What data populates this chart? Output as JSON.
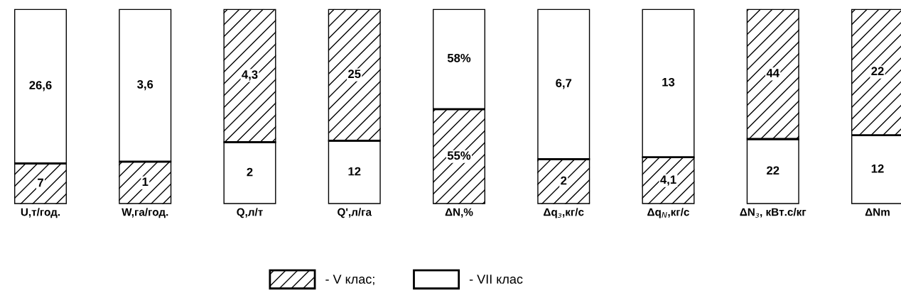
{
  "chart_data": [
    {
      "type": "bar",
      "stacked": true,
      "tick_labels": "x",
      "legend": "bottom",
      "categories": [
        "U,т/год."
      ],
      "series": [
        {
          "name": "- V клас;",
          "color": "#000000",
          "values": [
            7
          ],
          "value_labels": [
            "7"
          ]
        },
        {
          "name": "- VII клас",
          "color": "#ffffff",
          "values": [
            26.6
          ],
          "value_labels": [
            "26,6"
          ]
        }
      ]
    },
    {
      "type": "bar",
      "stacked": true,
      "tick_labels": "x",
      "categories": [
        "W,га/год."
      ],
      "series": [
        {
          "name": "- V клас;",
          "color": "#000000",
          "values": [
            1
          ],
          "value_labels": [
            "1"
          ]
        },
        {
          "name": "- VII клас",
          "color": "#ffffff",
          "values": [
            3.6
          ],
          "value_labels": [
            "3,6"
          ]
        }
      ]
    },
    {
      "type": "bar",
      "stacked": true,
      "tick_labels": "x",
      "categories": [
        "Q,л/т"
      ],
      "series": [
        {
          "name": "- VII клас",
          "color": "#ffffff",
          "values": [
            2
          ],
          "value_labels": [
            "2"
          ]
        },
        {
          "name": "- V клас;",
          "color": "#000000",
          "values": [
            4.3
          ],
          "value_labels": [
            "4,3"
          ]
        }
      ]
    },
    {
      "type": "bar",
      "stacked": true,
      "tick_labels": "x",
      "categories": [
        "Q',л/га"
      ],
      "series": [
        {
          "name": "- VII клас",
          "color": "#ffffff",
          "values": [
            12
          ],
          "value_labels": [
            "12"
          ]
        },
        {
          "name": "- V клас;",
          "color": "#000000",
          "values": [
            25
          ],
          "value_labels": [
            "25"
          ]
        }
      ]
    },
    {
      "type": "bar",
      "stacked": true,
      "tick_labels": "x",
      "categories": [
        "ΔN,%"
      ],
      "series": [
        {
          "name": "- V клас;",
          "color": "#000000",
          "values": [
            55
          ],
          "value_labels": [
            "55%"
          ]
        },
        {
          "name": "- VII клас",
          "color": "#ffffff",
          "values": [
            58
          ],
          "value_labels": [
            "58%"
          ]
        }
      ]
    },
    {
      "type": "bar",
      "stacked": true,
      "tick_labels": "x",
      "categories": [
        "Δq$_{з}$,кг/с"
      ],
      "series": [
        {
          "name": "- V клас;",
          "color": "#000000",
          "values": [
            2
          ],
          "value_labels": [
            "2"
          ]
        },
        {
          "name": "- VII клас",
          "color": "#ffffff",
          "values": [
            6.7
          ],
          "value_labels": [
            "6,7"
          ]
        }
      ]
    },
    {
      "type": "bar",
      "stacked": true,
      "tick_labels": "x",
      "categories": [
        "Δq$_{N}$,кг/с"
      ],
      "series": [
        {
          "name": "- V клас;",
          "color": "#000000",
          "values": [
            4.1
          ],
          "value_labels": [
            "4,1"
          ]
        },
        {
          "name": "- VII клас",
          "color": "#ffffff",
          "values": [
            13
          ],
          "value_labels": [
            "13"
          ]
        }
      ]
    },
    {
      "type": "bar",
      "stacked": true,
      "tick_labels": "x",
      "categories": [
        "ΔN$_{з}$, кВт.с/кг"
      ],
      "series": [
        {
          "name": "- VII клас",
          "color": "#ffffff",
          "values": [
            22
          ],
          "value_labels": [
            "22"
          ]
        },
        {
          "name": "- V клас;",
          "color": "#000000",
          "values": [
            44
          ],
          "value_labels": [
            "44"
          ]
        }
      ]
    },
    {
      "type": "bar",
      "stacked": true,
      "tick_labels": "x",
      "categories": [
        "ΔNm"
      ],
      "series": [
        {
          "name": "- VII клас",
          "color": "#ffffff",
          "values": [
            12
          ],
          "value_labels": [
            "12"
          ]
        },
        {
          "name": "- V клас;",
          "color": "#000000",
          "values": [
            22
          ],
          "value_labels": [
            "22"
          ]
        }
      ]
    }
  ]
}
